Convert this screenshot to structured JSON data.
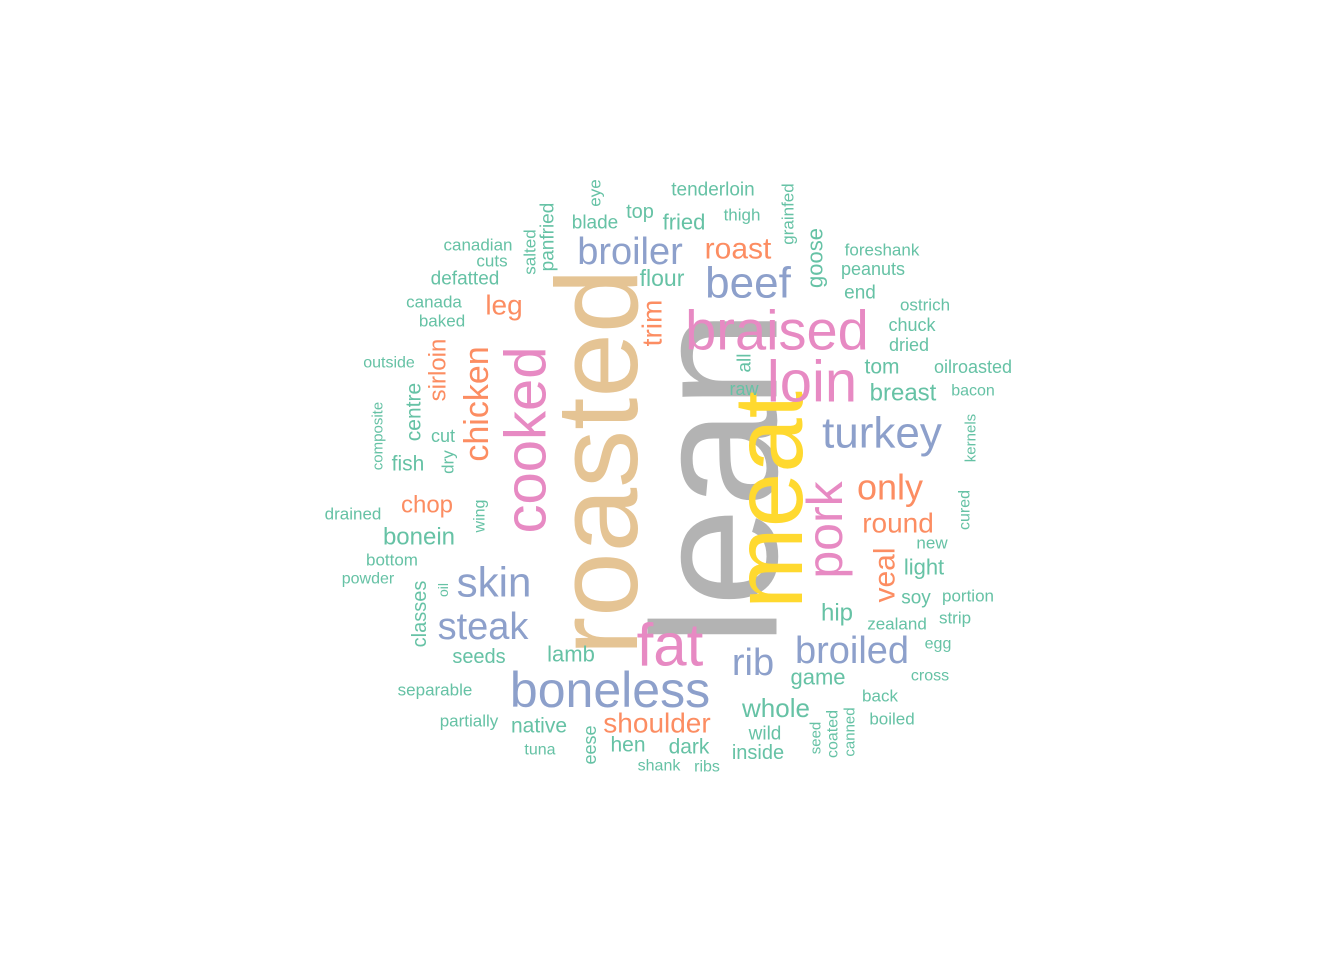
{
  "palette": {
    "gray": "#B3B3B3",
    "tan": "#E5C494",
    "yellow": "#FFD92F",
    "pink": "#E78AC3",
    "blue": "#8DA0CB",
    "orange": "#FC8D62",
    "green": "#66C2A5"
  },
  "words": [
    {
      "text": "lean",
      "color": "gray"
    },
    {
      "text": "roasted",
      "color": "tan"
    },
    {
      "text": "meat",
      "color": "yellow"
    },
    {
      "text": "fat",
      "color": "pink"
    },
    {
      "text": "braised",
      "color": "pink"
    },
    {
      "text": "cooked",
      "color": "pink"
    },
    {
      "text": "loin",
      "color": "pink"
    },
    {
      "text": "pork",
      "color": "pink"
    },
    {
      "text": "boneless",
      "color": "blue"
    },
    {
      "text": "beef",
      "color": "blue"
    },
    {
      "text": "broiler",
      "color": "blue"
    },
    {
      "text": "turkey",
      "color": "blue"
    },
    {
      "text": "skin",
      "color": "blue"
    },
    {
      "text": "steak",
      "color": "blue"
    },
    {
      "text": "broiled",
      "color": "blue"
    },
    {
      "text": "rib",
      "color": "blue"
    },
    {
      "text": "roast",
      "color": "orange"
    },
    {
      "text": "leg",
      "color": "orange"
    },
    {
      "text": "trim",
      "color": "orange"
    },
    {
      "text": "chicken",
      "color": "orange"
    },
    {
      "text": "sirloin",
      "color": "orange"
    },
    {
      "text": "only",
      "color": "orange"
    },
    {
      "text": "round",
      "color": "orange"
    },
    {
      "text": "veal",
      "color": "orange"
    },
    {
      "text": "chop",
      "color": "orange"
    },
    {
      "text": "shoulder",
      "color": "orange"
    },
    {
      "text": "tenderloin",
      "color": "green"
    },
    {
      "text": "eye",
      "color": "green"
    },
    {
      "text": "panfried",
      "color": "green"
    },
    {
      "text": "blade",
      "color": "green"
    },
    {
      "text": "top",
      "color": "green"
    },
    {
      "text": "fried",
      "color": "green"
    },
    {
      "text": "thigh",
      "color": "green"
    },
    {
      "text": "grainfed",
      "color": "green"
    },
    {
      "text": "salted",
      "color": "green"
    },
    {
      "text": "canadian",
      "color": "green"
    },
    {
      "text": "cuts",
      "color": "green"
    },
    {
      "text": "defatted",
      "color": "green"
    },
    {
      "text": "canada",
      "color": "green"
    },
    {
      "text": "baked",
      "color": "green"
    },
    {
      "text": "flour",
      "color": "green"
    },
    {
      "text": "goose",
      "color": "green"
    },
    {
      "text": "foreshank",
      "color": "green"
    },
    {
      "text": "peanuts",
      "color": "green"
    },
    {
      "text": "end",
      "color": "green"
    },
    {
      "text": "ostrich",
      "color": "green"
    },
    {
      "text": "chuck",
      "color": "green"
    },
    {
      "text": "dried",
      "color": "green"
    },
    {
      "text": "outside",
      "color": "green"
    },
    {
      "text": "all",
      "color": "green"
    },
    {
      "text": "raw",
      "color": "green"
    },
    {
      "text": "tom",
      "color": "green"
    },
    {
      "text": "oilroasted",
      "color": "green"
    },
    {
      "text": "breast",
      "color": "green"
    },
    {
      "text": "bacon",
      "color": "green"
    },
    {
      "text": "composite",
      "color": "green"
    },
    {
      "text": "centre",
      "color": "green"
    },
    {
      "text": "cut",
      "color": "green"
    },
    {
      "text": "dry",
      "color": "green"
    },
    {
      "text": "fish",
      "color": "green"
    },
    {
      "text": "kernels",
      "color": "green"
    },
    {
      "text": "drained",
      "color": "green"
    },
    {
      "text": "wing",
      "color": "green"
    },
    {
      "text": "bonein",
      "color": "green"
    },
    {
      "text": "cured",
      "color": "green"
    },
    {
      "text": "bottom",
      "color": "green"
    },
    {
      "text": "new",
      "color": "green"
    },
    {
      "text": "powder",
      "color": "green"
    },
    {
      "text": "light",
      "color": "green"
    },
    {
      "text": "classes",
      "color": "green"
    },
    {
      "text": "oil",
      "color": "green"
    },
    {
      "text": "soy",
      "color": "green"
    },
    {
      "text": "portion",
      "color": "green"
    },
    {
      "text": "hip",
      "color": "green"
    },
    {
      "text": "strip",
      "color": "green"
    },
    {
      "text": "zealand",
      "color": "green"
    },
    {
      "text": "seeds",
      "color": "green"
    },
    {
      "text": "lamb",
      "color": "green"
    },
    {
      "text": "egg",
      "color": "green"
    },
    {
      "text": "game",
      "color": "green"
    },
    {
      "text": "cross",
      "color": "green"
    },
    {
      "text": "separable",
      "color": "green"
    },
    {
      "text": "back",
      "color": "green"
    },
    {
      "text": "whole",
      "color": "green"
    },
    {
      "text": "partially",
      "color": "green"
    },
    {
      "text": "native",
      "color": "green"
    },
    {
      "text": "coated",
      "color": "green"
    },
    {
      "text": "boiled",
      "color": "green"
    },
    {
      "text": "seed",
      "color": "green"
    },
    {
      "text": "canned",
      "color": "green"
    },
    {
      "text": "wild",
      "color": "green"
    },
    {
      "text": "tuna",
      "color": "green"
    },
    {
      "text": "hen",
      "color": "green"
    },
    {
      "text": "dark",
      "color": "green"
    },
    {
      "text": "inside",
      "color": "green"
    },
    {
      "text": "eese",
      "color": "green"
    },
    {
      "text": "shank",
      "color": "green"
    },
    {
      "text": "ribs",
      "color": "green"
    }
  ]
}
